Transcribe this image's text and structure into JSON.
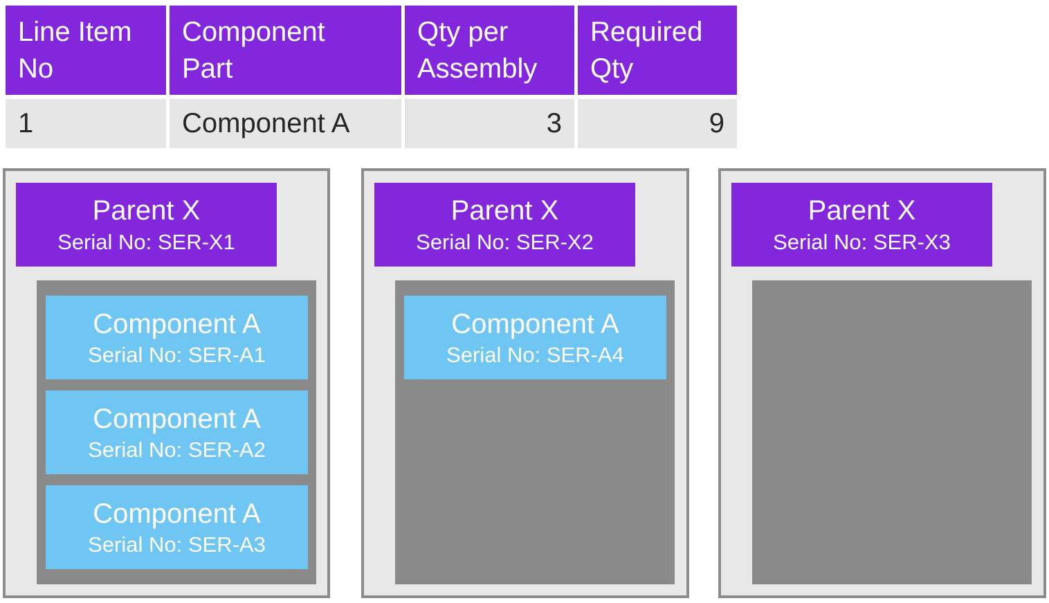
{
  "colors": {
    "header_purple": "#8227DB",
    "component_blue": "#70C6F2",
    "panel_background_gray": "#E8E8E8",
    "panel_border_gray": "#8C8C8C",
    "container_gray": "#8A8A8A",
    "table_row_gray": "#E6E6E6",
    "table_text_dark": "#262626",
    "text_white": "#FFFFFF"
  },
  "table": {
    "headers": [
      "Line Item No",
      "Component Part",
      "Qty per Assembly",
      "Required Qty"
    ],
    "rows": [
      {
        "line_item_no": "1",
        "component_part": "Component A",
        "qty_per_assembly": "3",
        "required_qty": "9"
      }
    ]
  },
  "panels": [
    {
      "title": "Parent X",
      "serial": "Serial No: SER-X1",
      "components": [
        {
          "name": "Component A",
          "serial": "Serial No: SER-A1"
        },
        {
          "name": "Component A",
          "serial": "Serial No: SER-A2"
        },
        {
          "name": "Component A",
          "serial": "Serial No: SER-A3"
        }
      ]
    },
    {
      "title": "Parent X",
      "serial": "Serial No: SER-X2",
      "components": [
        {
          "name": "Component A",
          "serial": "Serial No: SER-A4"
        }
      ]
    },
    {
      "title": "Parent X",
      "serial": "Serial No: SER-X3",
      "components": []
    }
  ]
}
